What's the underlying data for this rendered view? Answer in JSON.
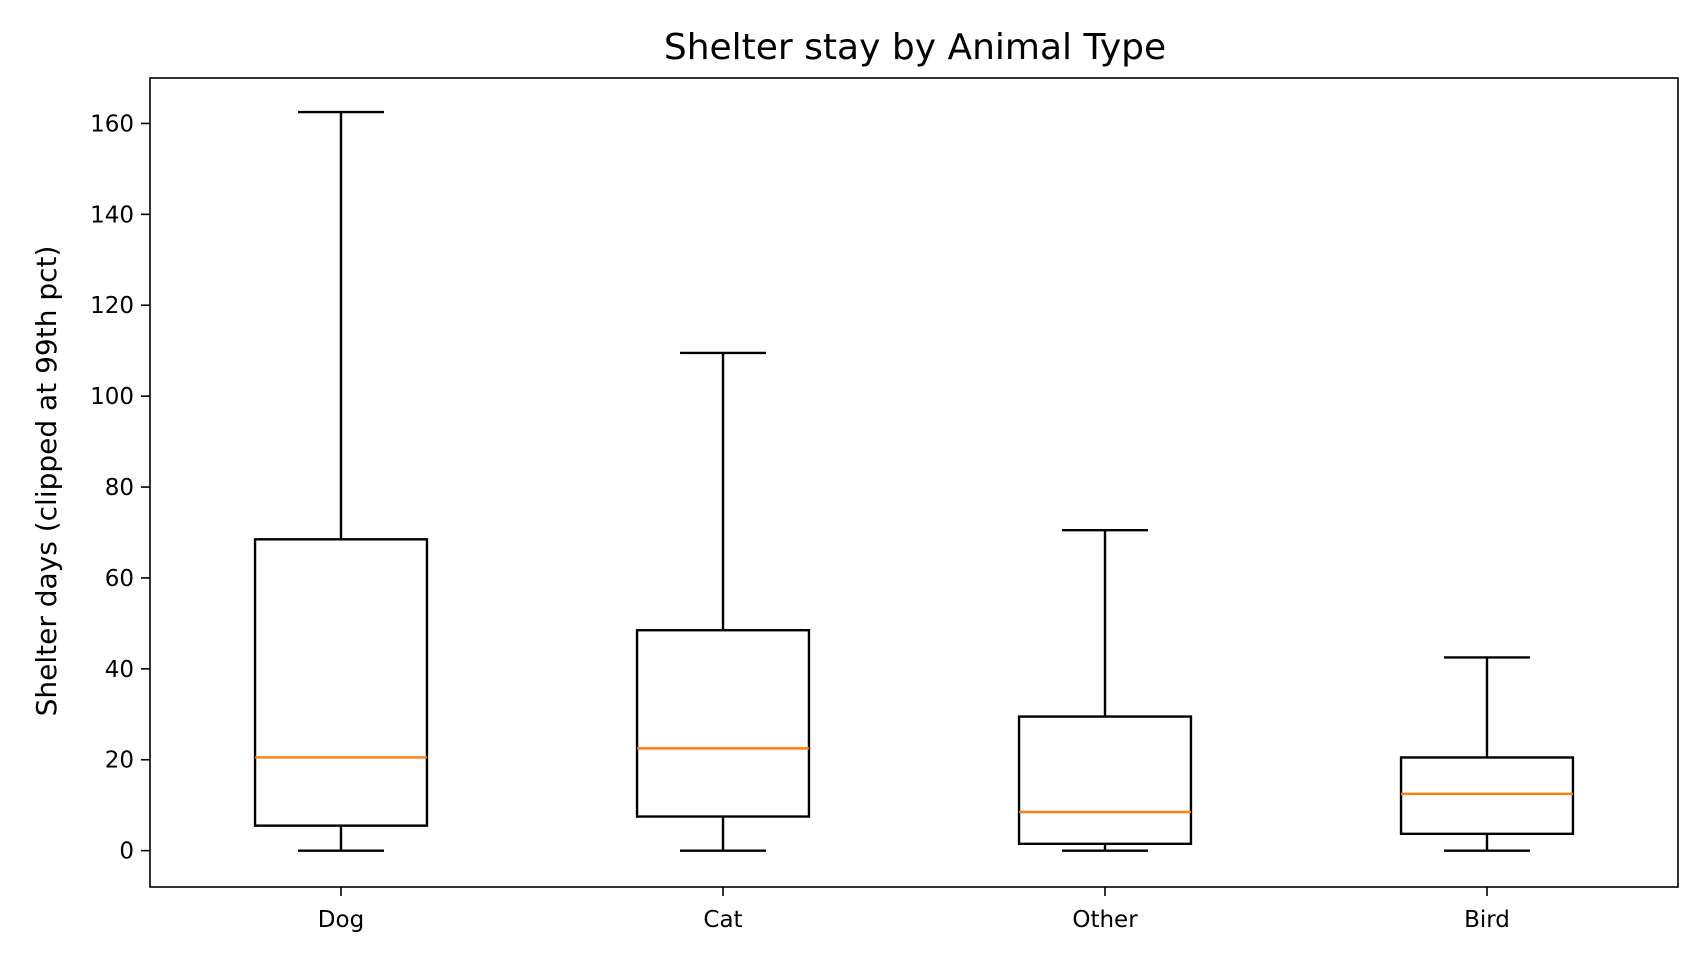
{
  "chart_data": {
    "type": "box",
    "title": "Shelter stay by Animal Type",
    "xlabel": "",
    "ylabel": "Shelter days (clipped at 99th pct)",
    "ylim": [
      -8,
      170
    ],
    "yticks": [
      0,
      20,
      40,
      60,
      80,
      100,
      120,
      140,
      160
    ],
    "categories": [
      "Dog",
      "Cat",
      "Other",
      "Bird"
    ],
    "boxes": [
      {
        "label": "Dog",
        "whisker_low": 0,
        "q1": 5.5,
        "median": 20.5,
        "q3": 68.5,
        "whisker_high": 162.5
      },
      {
        "label": "Cat",
        "whisker_low": 0,
        "q1": 7.5,
        "median": 22.5,
        "q3": 48.5,
        "whisker_high": 109.5
      },
      {
        "label": "Other",
        "whisker_low": 0,
        "q1": 1.5,
        "median": 8.5,
        "q3": 29.5,
        "whisker_high": 70.5
      },
      {
        "label": "Bird",
        "whisker_low": 0,
        "q1": 3.7,
        "median": 12.5,
        "q3": 20.5,
        "whisker_high": 42.5
      }
    ],
    "colors": {
      "box": "#000000",
      "median": "#ff7f0e"
    },
    "grid": false,
    "legend": "none"
  }
}
